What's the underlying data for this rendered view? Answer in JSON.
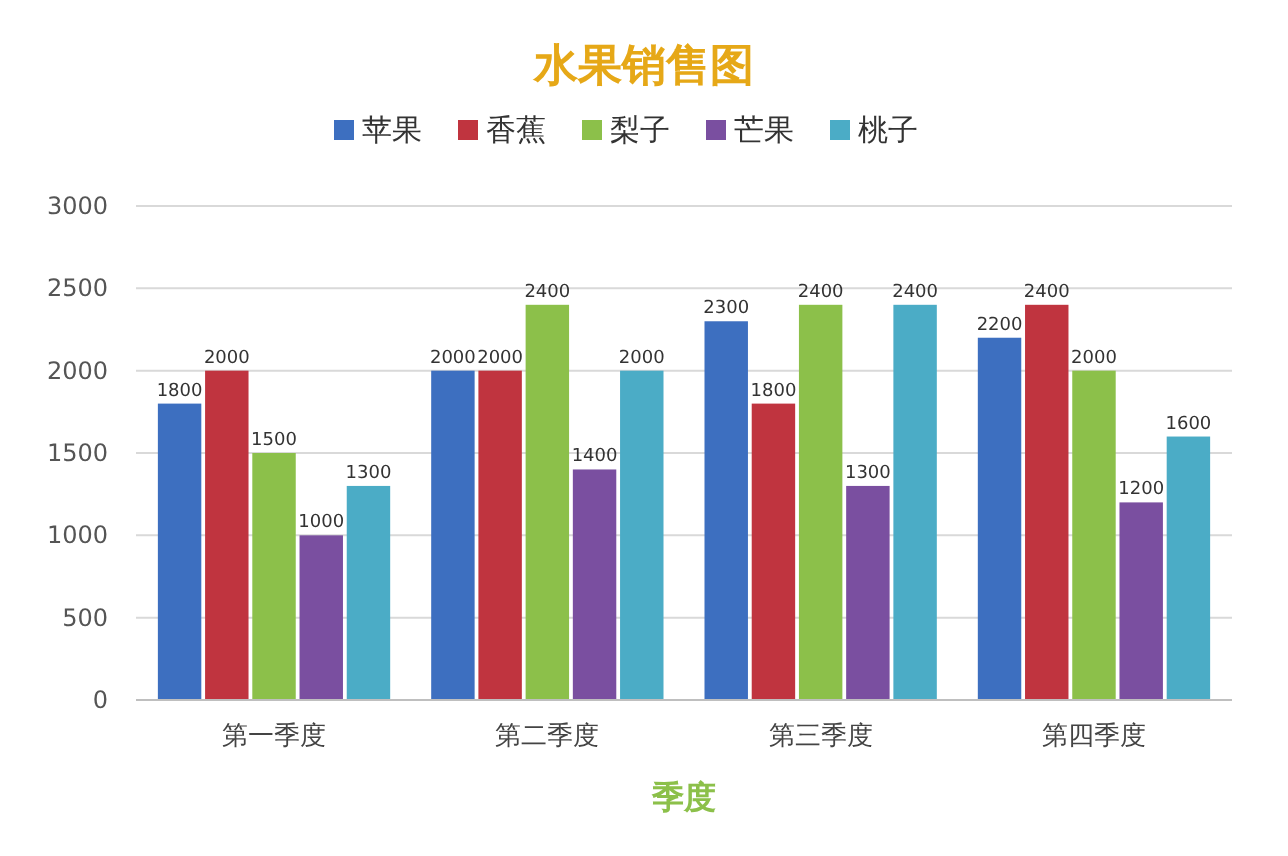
{
  "chart_data": {
    "type": "bar",
    "title": "水果销售图",
    "xlabel": "季度",
    "categories": [
      "第一季度",
      "第二季度",
      "第三季度",
      "第四季度"
    ],
    "series": [
      {
        "name": "苹果",
        "color": "#3d6fc0",
        "values": [
          1800,
          2000,
          2300,
          2200
        ]
      },
      {
        "name": "香蕉",
        "color": "#c0343f",
        "values": [
          2000,
          2000,
          1800,
          2400
        ]
      },
      {
        "name": "梨子",
        "color": "#8cc04a",
        "values": [
          1500,
          2400,
          2400,
          2000
        ]
      },
      {
        "name": "芒果",
        "color": "#7a4fa0",
        "values": [
          1000,
          1400,
          1300,
          1200
        ]
      },
      {
        "name": "桃子",
        "color": "#4bacc6",
        "values": [
          1300,
          2000,
          2400,
          1600
        ]
      }
    ],
    "ylim": [
      0,
      3000
    ],
    "yticks": [
      0,
      500,
      1000,
      1500,
      2000,
      2500,
      3000
    ],
    "grid": "y",
    "legend": "top",
    "data_labels": true
  }
}
